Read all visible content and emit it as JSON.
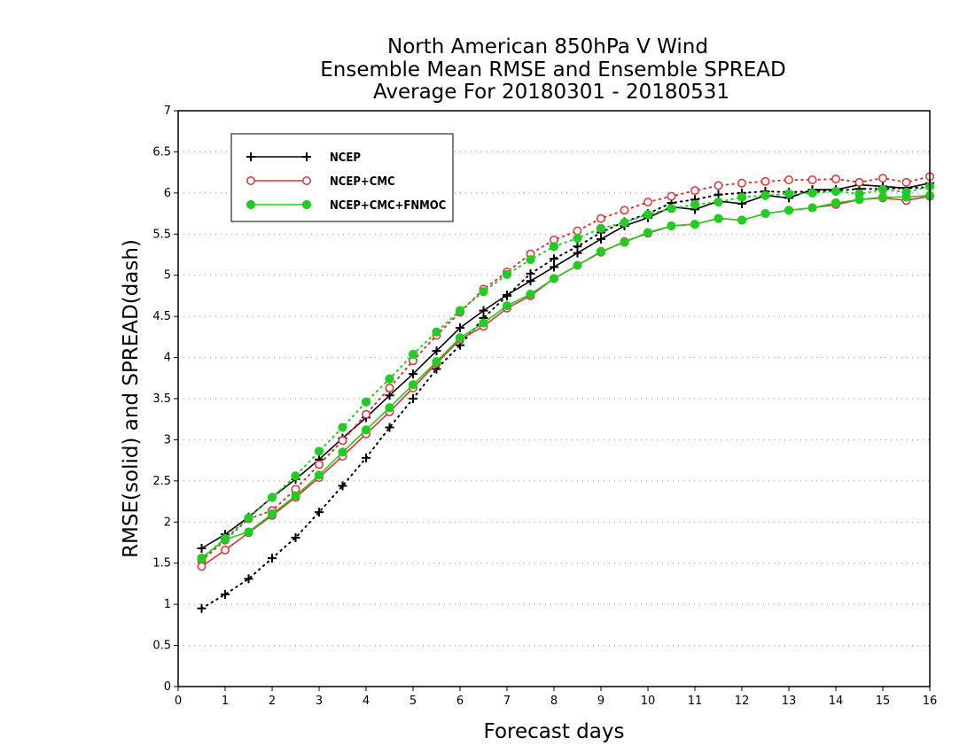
{
  "chart_data": {
    "type": "line",
    "title": [
      "North American 850hPa V Wind",
      "Ensemble Mean RMSE and Ensemble SPREAD",
      "Average For 20180301 - 20180531"
    ],
    "xlabel": "Forecast days",
    "ylabel": "RMSE(solid) and SPREAD(dash)",
    "xlim": [
      0,
      16
    ],
    "ylim": [
      0,
      7
    ],
    "x_ticks": [
      0,
      1,
      2,
      3,
      4,
      5,
      6,
      7,
      8,
      9,
      10,
      11,
      12,
      13,
      14,
      15,
      16
    ],
    "y_ticks": [
      0,
      0.5,
      1,
      1.5,
      2,
      2.5,
      3,
      3.5,
      4,
      4.5,
      5,
      5.5,
      6,
      6.5,
      7
    ],
    "y_tick_labels": [
      "0",
      "0.5",
      "1",
      "1.5",
      "2",
      "2.5",
      "3",
      "3.5",
      "4",
      "4.5",
      "5",
      "5.5",
      "6",
      "6.5",
      "7"
    ],
    "grid": true,
    "legend_position": "top-left",
    "x": [
      0.5,
      1,
      1.5,
      2,
      2.5,
      3,
      3.5,
      4,
      4.5,
      5,
      5.5,
      6,
      6.5,
      7,
      7.5,
      8,
      8.5,
      9,
      9.5,
      10,
      10.5,
      11,
      11.5,
      12,
      12.5,
      13,
      13.5,
      14,
      14.5,
      15,
      15.5,
      16
    ],
    "series": [
      {
        "name": "NCEP",
        "color": "#000000",
        "marker": "plus",
        "rmse": [
          1.68,
          1.85,
          2.06,
          2.3,
          2.52,
          2.76,
          3.02,
          3.27,
          3.54,
          3.8,
          4.08,
          4.36,
          4.57,
          4.76,
          4.93,
          5.1,
          5.27,
          5.44,
          5.6,
          5.7,
          5.83,
          5.8,
          5.9,
          5.87,
          5.97,
          5.94,
          6.04,
          6.04,
          6.1,
          6.08,
          6.06,
          6.12
        ],
        "spread": [
          0.95,
          1.12,
          1.31,
          1.56,
          1.81,
          2.12,
          2.44,
          2.78,
          3.15,
          3.5,
          3.86,
          4.15,
          4.48,
          4.75,
          5.02,
          5.2,
          5.35,
          5.52,
          5.65,
          5.75,
          5.88,
          5.92,
          5.98,
          6.0,
          6.02,
          6.01,
          6.02,
          6.03,
          6.05,
          6.05,
          6.06,
          6.07
        ]
      },
      {
        "name": "NCEP+CMC",
        "color": "#e03030",
        "marker": "open-circle",
        "rmse": [
          1.46,
          1.66,
          1.87,
          2.08,
          2.3,
          2.54,
          2.8,
          3.07,
          3.34,
          3.63,
          3.93,
          4.22,
          4.38,
          4.6,
          4.75,
          4.96,
          5.12,
          5.28,
          5.41,
          5.51,
          5.6,
          5.62,
          5.69,
          5.67,
          5.75,
          5.79,
          5.82,
          5.86,
          5.92,
          5.94,
          5.91,
          5.96
        ],
        "spread": [
          1.53,
          1.78,
          2.04,
          2.14,
          2.4,
          2.7,
          2.99,
          3.31,
          3.63,
          3.96,
          4.27,
          4.55,
          4.83,
          5.04,
          5.26,
          5.43,
          5.54,
          5.69,
          5.79,
          5.89,
          5.96,
          6.03,
          6.09,
          6.12,
          6.14,
          6.16,
          6.16,
          6.17,
          6.13,
          6.18,
          6.13,
          6.2
        ]
      },
      {
        "name": "NCEP+CMC+FNMOC",
        "color": "#22cc22",
        "marker": "filled-circle",
        "rmse": [
          1.56,
          1.79,
          1.88,
          2.1,
          2.32,
          2.57,
          2.85,
          3.12,
          3.39,
          3.67,
          3.95,
          4.24,
          4.42,
          4.63,
          4.77,
          4.96,
          5.12,
          5.29,
          5.4,
          5.52,
          5.6,
          5.62,
          5.69,
          5.67,
          5.75,
          5.79,
          5.82,
          5.88,
          5.92,
          5.95,
          5.95,
          5.97
        ],
        "spread": [
          1.56,
          1.8,
          2.05,
          2.3,
          2.56,
          2.86,
          3.15,
          3.46,
          3.74,
          4.04,
          4.31,
          4.57,
          4.8,
          5.01,
          5.19,
          5.35,
          5.45,
          5.57,
          5.64,
          5.74,
          5.81,
          5.86,
          5.89,
          5.95,
          5.97,
          5.99,
          6.0,
          6.02,
          5.99,
          6.04,
          6.01,
          6.08
        ]
      }
    ]
  }
}
